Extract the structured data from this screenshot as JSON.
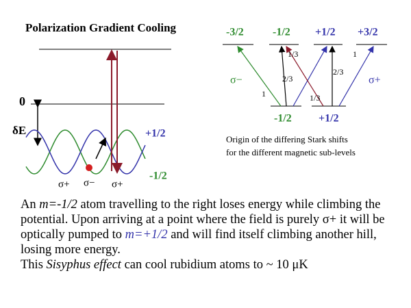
{
  "title": "Polarization Gradient Cooling",
  "left_diagram": {
    "zero_label": "0",
    "delta_label": "δE",
    "upper_state": "+1/2",
    "lower_state": "-1/2",
    "polarizations": [
      "σ+",
      "σ−",
      "σ+"
    ]
  },
  "right_diagram": {
    "upper_levels": [
      "-3/2",
      "-1/2",
      "+1/2",
      "+3/2"
    ],
    "lower_levels": [
      "-1/2",
      "+1/2"
    ],
    "sigma_minus": "σ−",
    "sigma_plus": "σ+",
    "coefficients": [
      "1",
      "2/3",
      "1/3",
      "1/3",
      "2/3",
      "1"
    ],
    "caption": [
      "Origin of the differing Stark shifts",
      "for the different magnetic sub-levels"
    ]
  },
  "body": {
    "paragraph1": [
      "An ",
      "m=-1/2",
      " atom travelling to the right loses energy while climbing the potential.  Upon arriving at a point where the field is purely σ+ it will be optically pumped to ",
      "m=+1/2",
      " and will find itself climbing another hill, losing more energy."
    ],
    "paragraph2": [
      "This ",
      "Sisyphus effect",
      " can cool rubidium atoms to ~ 10 μK"
    ]
  }
}
